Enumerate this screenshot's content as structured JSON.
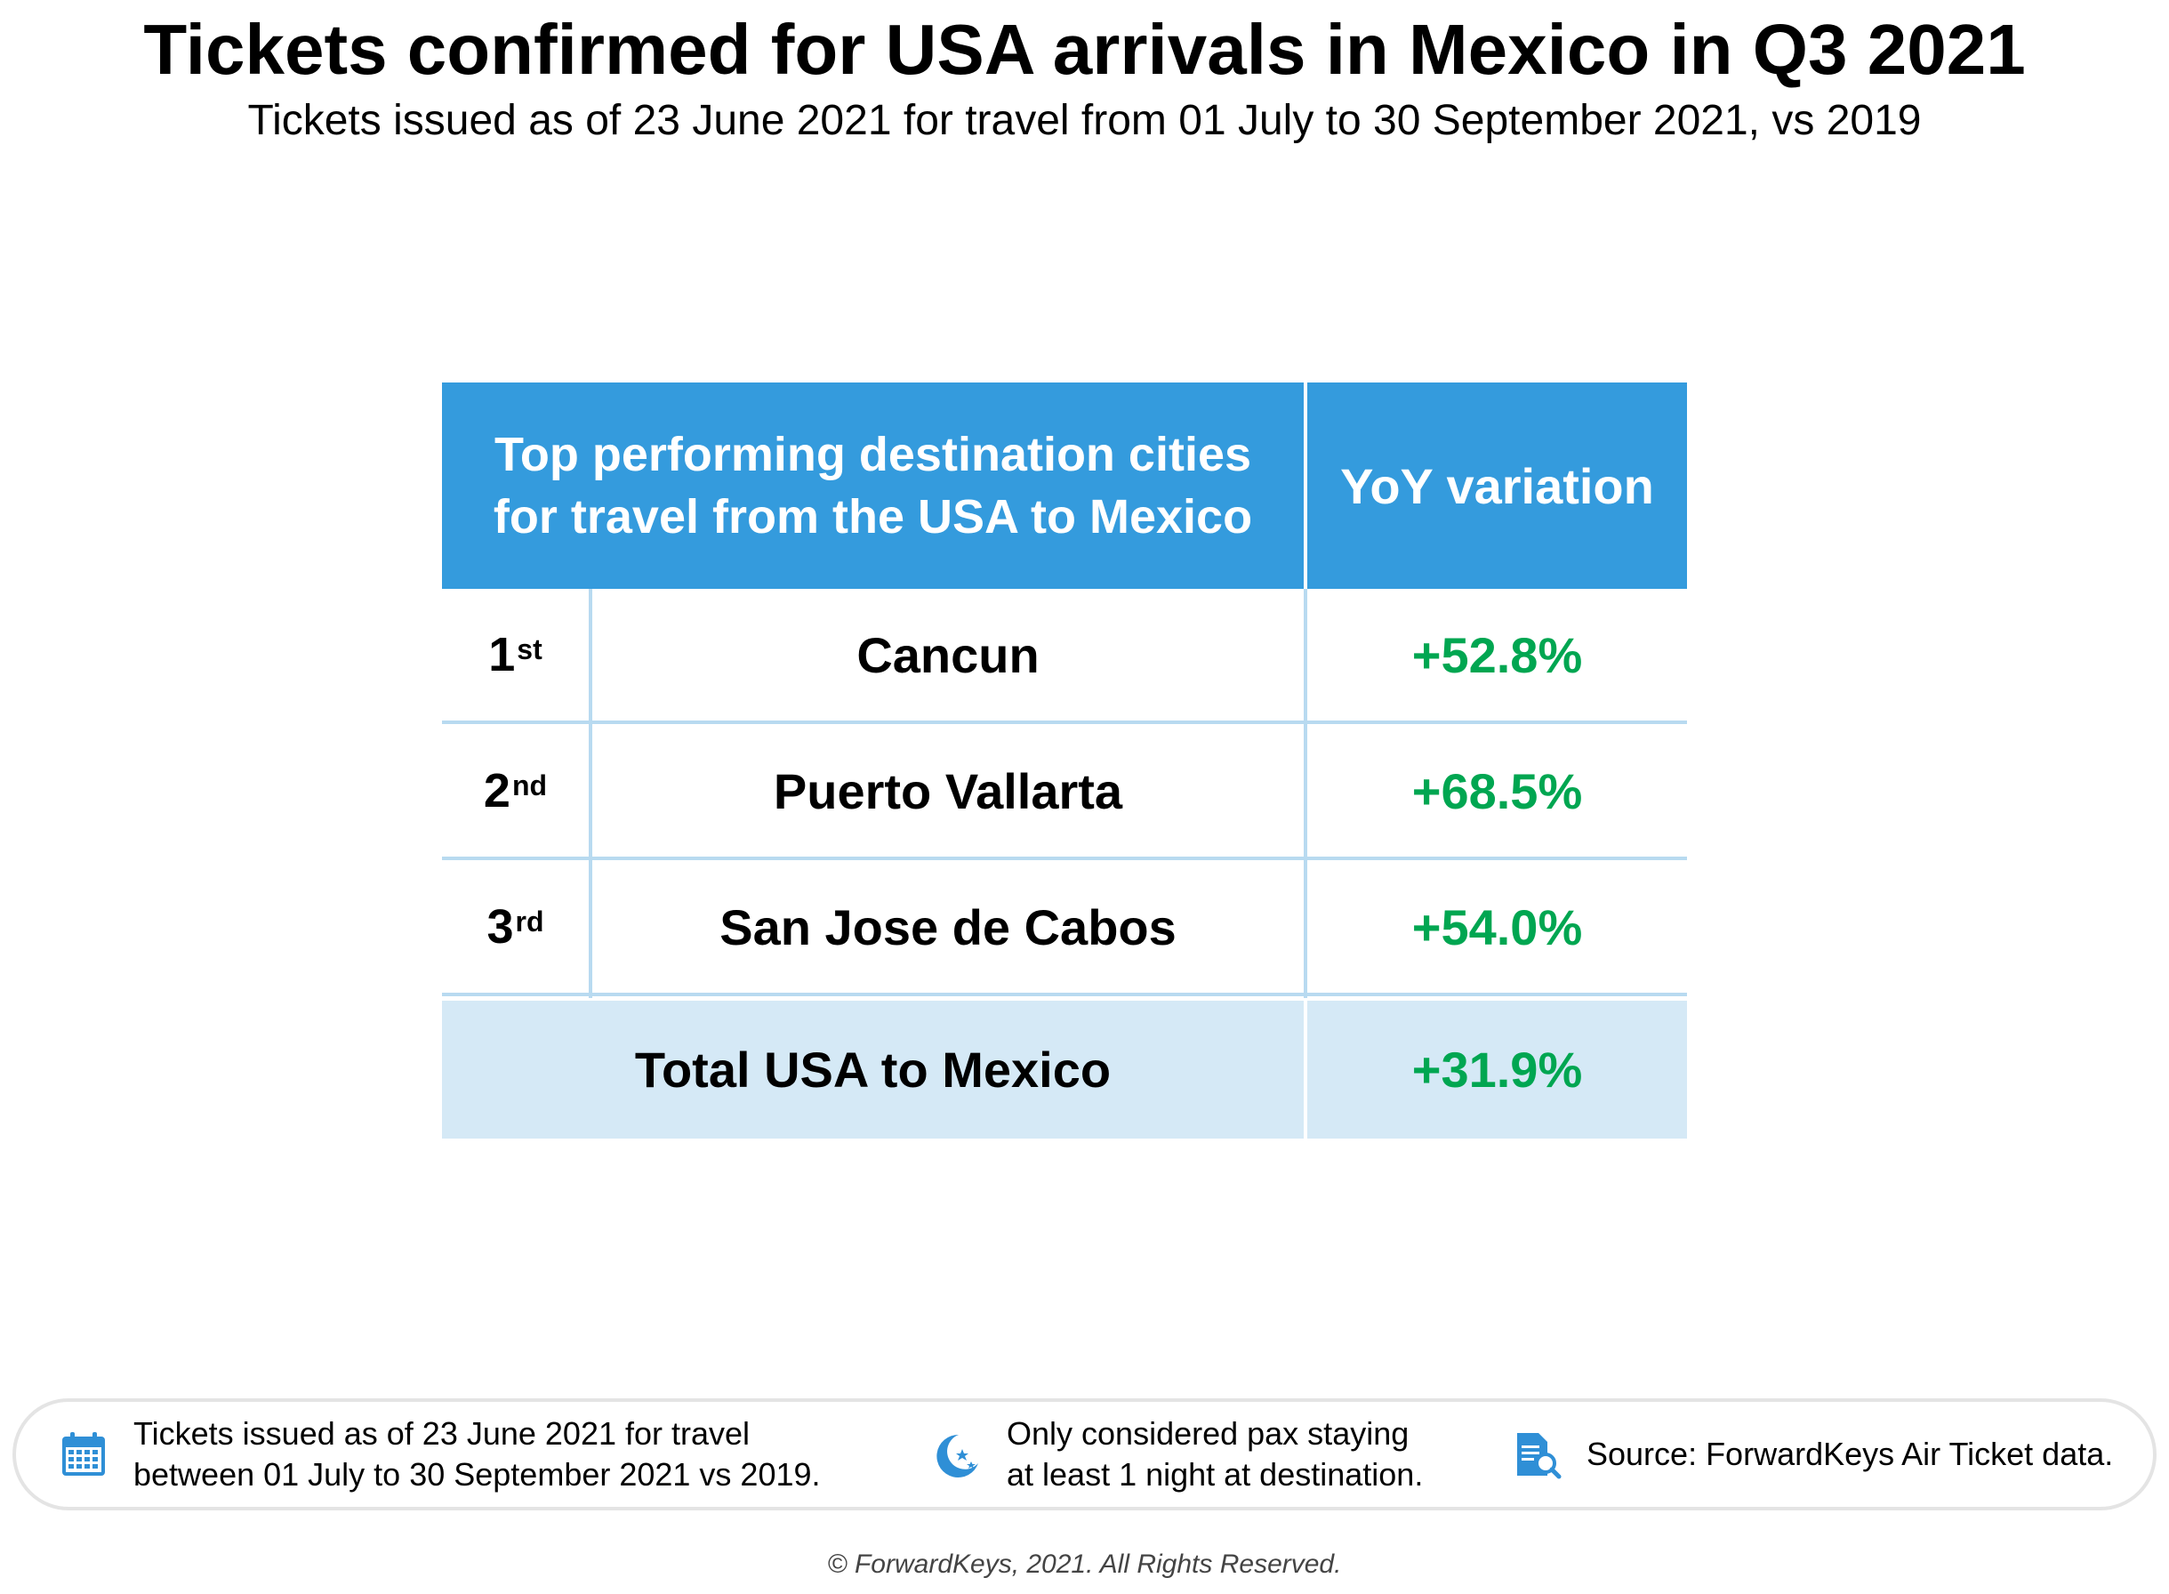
{
  "title": "Tickets confirmed for USA arrivals in Mexico in Q3 2021",
  "subtitle": "Tickets issued as of 23 June 2021 for travel from 01 July to 30 September 2021, vs 2019",
  "table": {
    "header_city_line1": "Top performing destination cities",
    "header_city_line2": "for travel from the USA to Mexico",
    "header_yoy": "YoY variation",
    "rows": [
      {
        "rank_num": "1",
        "rank_suffix": "st",
        "city": "Cancun",
        "yoy": "+52.8%"
      },
      {
        "rank_num": "2",
        "rank_suffix": "nd",
        "city": "Puerto Vallarta",
        "yoy": "+68.5%"
      },
      {
        "rank_num": "3",
        "rank_suffix": "rd",
        "city": "San Jose de Cabos",
        "yoy": "+54.0%"
      }
    ],
    "total_label": "Total USA to Mexico",
    "total_yoy": "+31.9%"
  },
  "footer": {
    "note1_line1": "Tickets issued as of 23 June 2021 for travel",
    "note1_line2": "between 01 July to 30 September 2021 vs 2019.",
    "note1_icon": "calendar-icon",
    "note2_line1": "Only considered pax staying",
    "note2_line2": "at least 1 night at destination.",
    "note2_icon": "moon-stars-icon",
    "note3_line1": "Source: ForwardKeys Air Ticket data.",
    "note3_icon": "document-search-icon"
  },
  "copyright": "© ForwardKeys, 2021. All Rights Reserved.",
  "colors": {
    "header_bg": "#349bdd",
    "positive": "#00a651",
    "total_bg": "#d5e9f6",
    "grid": "#b8daf0"
  }
}
